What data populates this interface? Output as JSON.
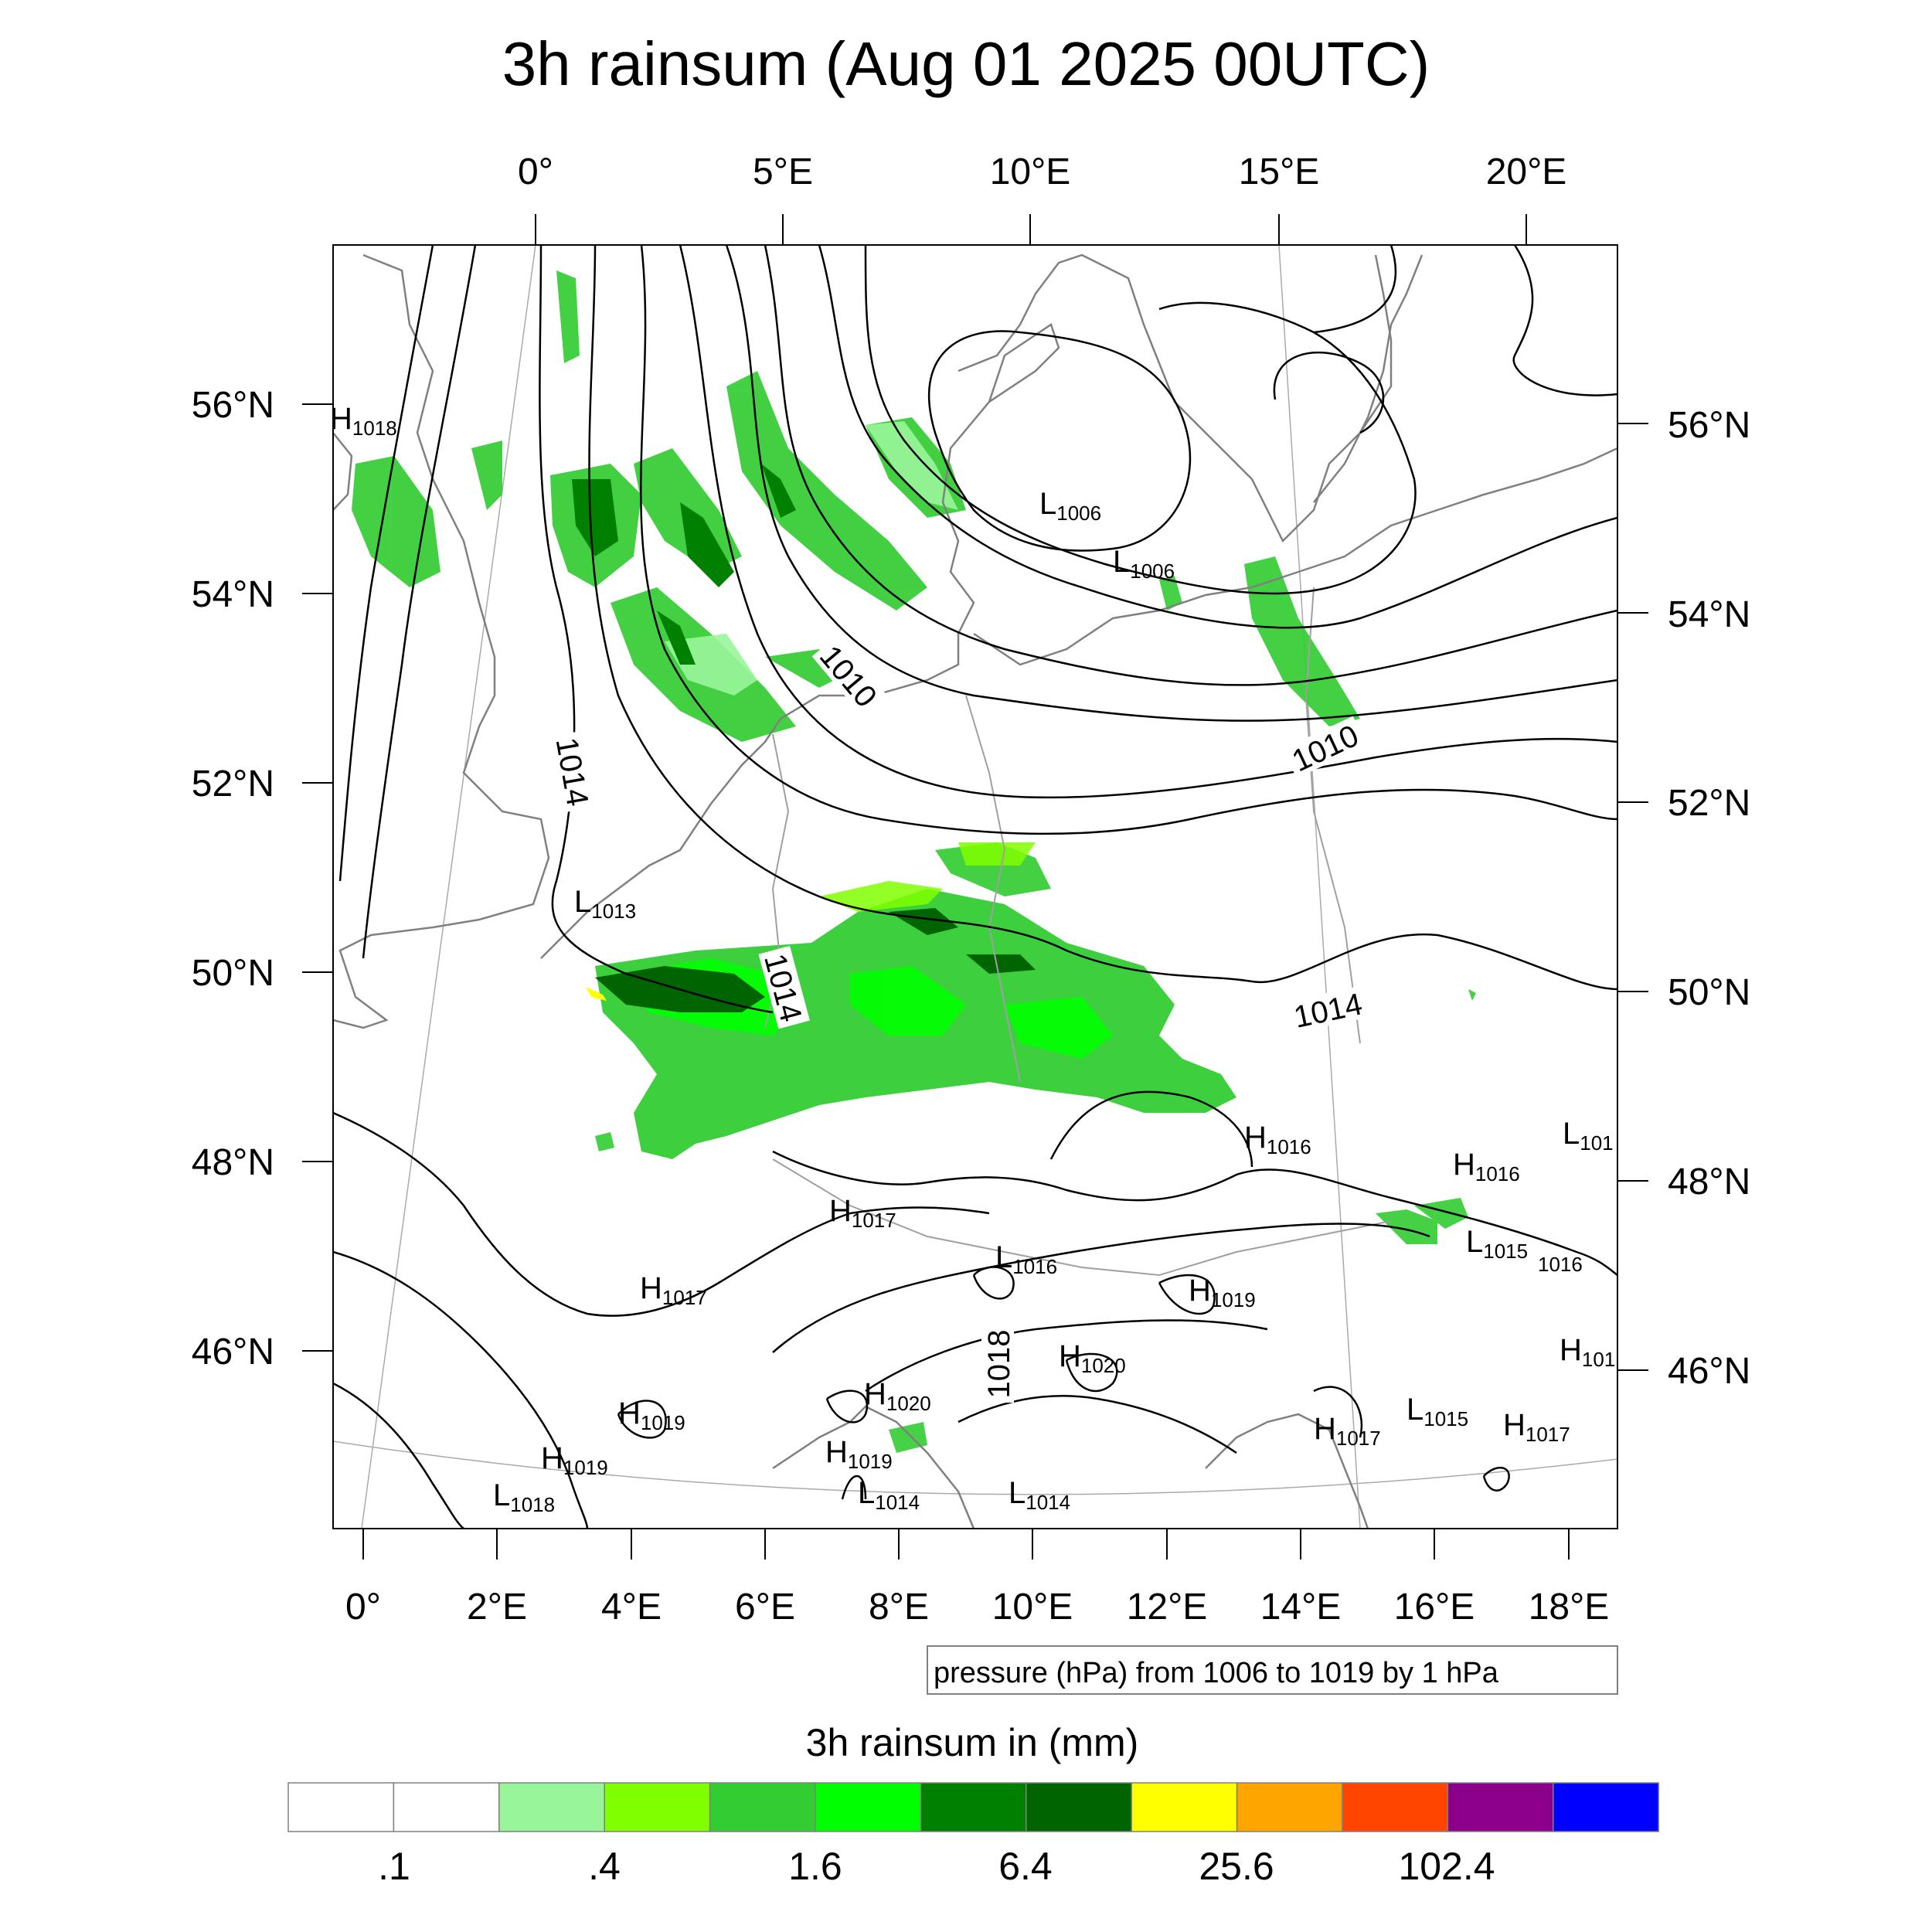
{
  "title": "3h rainsum (Aug 01 2025 00UTC)",
  "top_lon_labels": [
    "0°",
    "5°E",
    "10°E",
    "15°E",
    "20°E"
  ],
  "bottom_lon_labels": [
    "0°",
    "2°E",
    "4°E",
    "6°E",
    "8°E",
    "10°E",
    "12°E",
    "14°E",
    "16°E",
    "18°E"
  ],
  "left_lat_labels": [
    "56°N",
    "54°N",
    "52°N",
    "50°N",
    "48°N",
    "46°N"
  ],
  "right_lat_labels": [
    "56°N",
    "54°N",
    "52°N",
    "50°N",
    "48°N",
    "46°N"
  ],
  "contour_labels": [
    "1010",
    "1010",
    "1014",
    "1014",
    "1014",
    "1018"
  ],
  "pressure_centers": [
    {
      "type": "H",
      "value": "1018"
    },
    {
      "type": "L",
      "value": "1006"
    },
    {
      "type": "L",
      "value": "1006"
    },
    {
      "type": "L",
      "value": "1013"
    },
    {
      "type": "H",
      "value": "1016"
    },
    {
      "type": "L",
      "value": "101"
    },
    {
      "type": "H",
      "value": "1016"
    },
    {
      "type": "H",
      "value": "1017"
    },
    {
      "type": "L",
      "value": "1015"
    },
    {
      "type": "",
      "value": "1016"
    },
    {
      "type": "L",
      "value": "1016"
    },
    {
      "type": "H",
      "value": "1017"
    },
    {
      "type": "H",
      "value": "1019"
    },
    {
      "type": "H",
      "value": "101"
    },
    {
      "type": "H",
      "value": "1020"
    },
    {
      "type": "H",
      "value": "1020"
    },
    {
      "type": "L",
      "value": "1015"
    },
    {
      "type": "H",
      "value": "1019"
    },
    {
      "type": "H",
      "value": "1019"
    },
    {
      "type": "H",
      "value": "1017"
    },
    {
      "type": "H",
      "value": "1017"
    },
    {
      "type": "H",
      "value": "1019"
    },
    {
      "type": "L",
      "value": "1018"
    },
    {
      "type": "L",
      "value": "1014"
    },
    {
      "type": "L",
      "value": "1014"
    }
  ],
  "contour_info": "pressure (hPa) from 1006 to 1019 by 1 hPa",
  "colorbar": {
    "title": "3h rainsum in (mm)",
    "colors": [
      "#ffffff",
      "#ffffff",
      "#99f599",
      "#80ff00",
      "#33cc33",
      "#00ff00",
      "#008000",
      "#006400",
      "#ffff00",
      "#ffa500",
      "#ff4500",
      "#8b008b",
      "#0000ff"
    ],
    "tick_labels": [
      ".1",
      ".4",
      "1.6",
      "6.4",
      "25.6",
      "102.4"
    ]
  }
}
